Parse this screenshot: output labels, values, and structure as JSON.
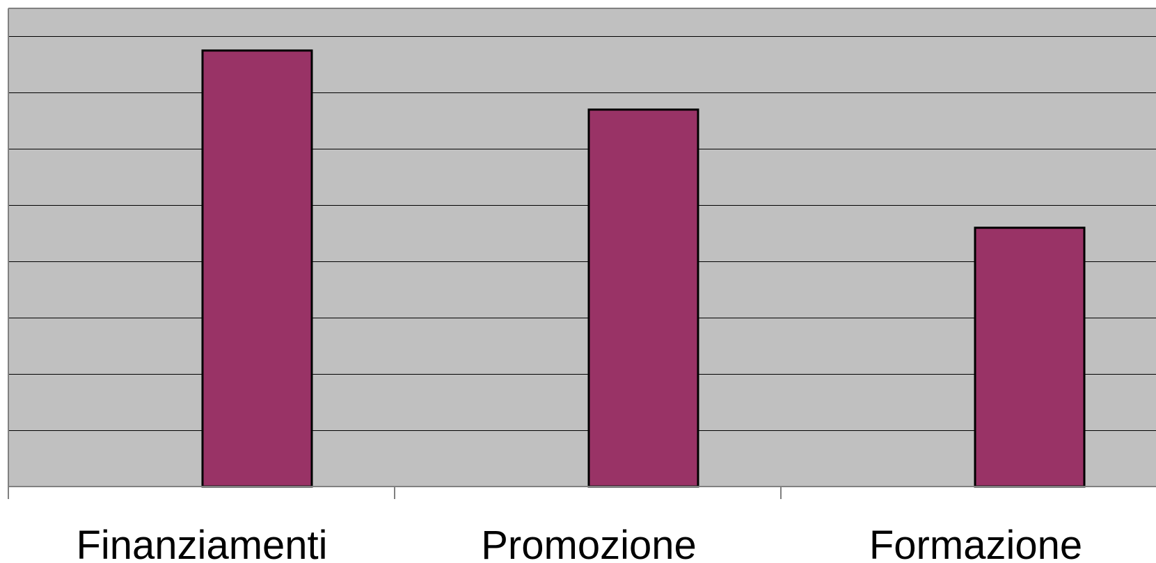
{
  "chart_data": {
    "type": "bar",
    "categories": [
      "Finanziamenti",
      "Promozione",
      "Formazione"
    ],
    "values": [
      7.75,
      6.7,
      4.6
    ],
    "ylim": [
      0,
      8.5
    ],
    "gridlines": [
      1,
      2,
      3,
      4,
      5,
      6,
      7,
      8
    ],
    "grid": true,
    "title": "",
    "xlabel": "",
    "ylabel": "",
    "colors": {
      "bar": "#993366",
      "plot_background": "#c0c0c0"
    }
  }
}
